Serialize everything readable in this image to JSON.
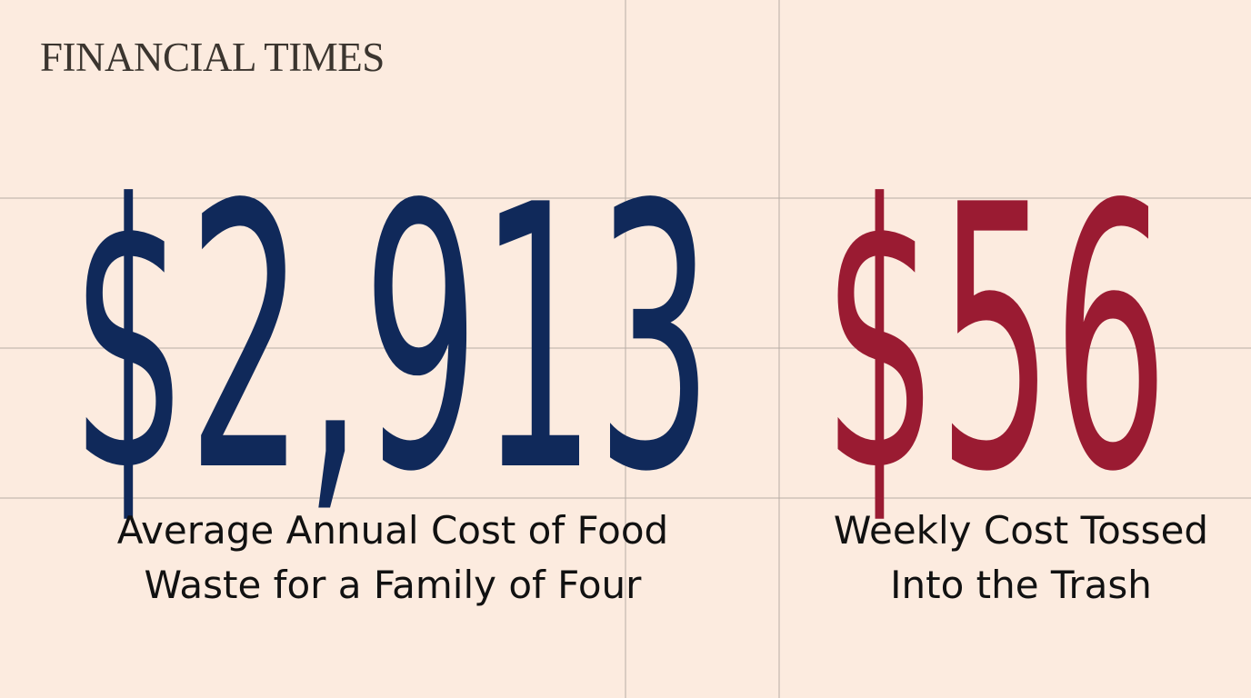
{
  "brand": "FINANCIAL TIMES",
  "stats": [
    {
      "figure": "$2,913",
      "label_lines": [
        "Average Annual Cost of Food",
        "Waste for a Family of Four"
      ]
    },
    {
      "figure": "$56",
      "label_lines": [
        "Weekly Cost Tossed",
        "Into the Trash"
      ]
    }
  ]
}
